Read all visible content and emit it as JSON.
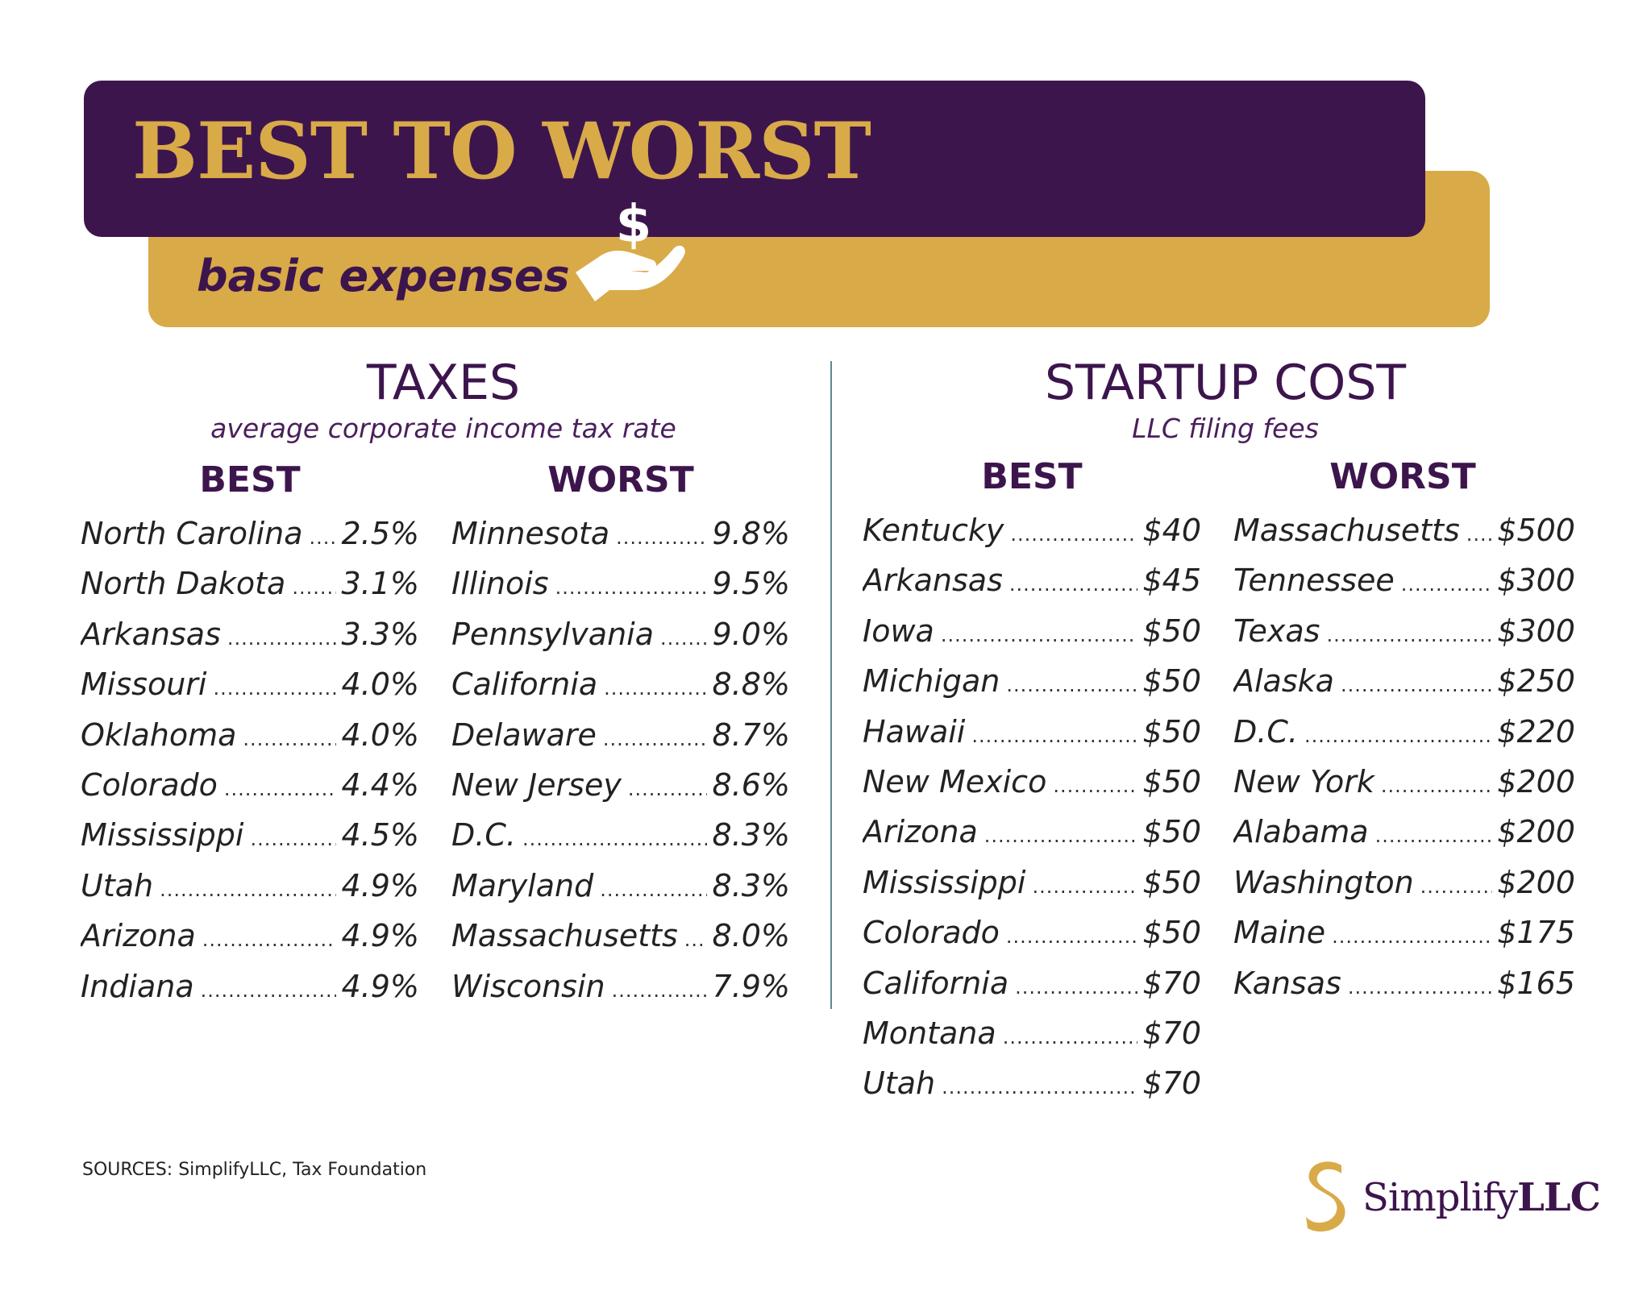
{
  "header": {
    "title": "BEST TO WORST",
    "subtitle": "basic expenses",
    "icon": "money-hand-icon"
  },
  "colors": {
    "purple": "#3d154d",
    "gold": "#d9aa48",
    "divider": "#5d8a94",
    "text": "#222222"
  },
  "taxes": {
    "title": "TAXES",
    "subtitle": "average corporate income tax rate",
    "best_label": "BEST",
    "worst_label": "WORST",
    "best": [
      {
        "name": "North Carolina",
        "value": "2.5%"
      },
      {
        "name": "North Dakota",
        "value": "3.1%"
      },
      {
        "name": "Arkansas",
        "value": "3.3%"
      },
      {
        "name": "Missouri",
        "value": "4.0%"
      },
      {
        "name": "Oklahoma",
        "value": "4.0%"
      },
      {
        "name": "Colorado",
        "value": "4.4%"
      },
      {
        "name": "Mississippi",
        "value": "4.5%"
      },
      {
        "name": "Utah",
        "value": "4.9%"
      },
      {
        "name": "Arizona",
        "value": "4.9%"
      },
      {
        "name": "Indiana",
        "value": "4.9%"
      }
    ],
    "worst": [
      {
        "name": "Minnesota",
        "value": "9.8%"
      },
      {
        "name": "Illinois",
        "value": "9.5%"
      },
      {
        "name": "Pennsylvania",
        "value": "9.0%"
      },
      {
        "name": "California",
        "value": "8.8%"
      },
      {
        "name": "Delaware",
        "value": "8.7%"
      },
      {
        "name": "New Jersey",
        "value": "8.6%"
      },
      {
        "name": "D.C.",
        "value": "8.3%"
      },
      {
        "name": "Maryland",
        "value": "8.3%"
      },
      {
        "name": "Massachusetts",
        "value": "8.0%"
      },
      {
        "name": "Wisconsin",
        "value": "7.9%"
      }
    ]
  },
  "startup": {
    "title": "STARTUP COST",
    "subtitle": "LLC filing fees",
    "best_label": "BEST",
    "worst_label": "WORST",
    "best": [
      {
        "name": "Kentucky",
        "value": "$40"
      },
      {
        "name": "Arkansas",
        "value": "$45"
      },
      {
        "name": "Iowa",
        "value": "$50"
      },
      {
        "name": "Michigan",
        "value": "$50"
      },
      {
        "name": "Hawaii",
        "value": "$50"
      },
      {
        "name": "New Mexico",
        "value": "$50"
      },
      {
        "name": "Arizona",
        "value": "$50"
      },
      {
        "name": "Mississippi",
        "value": "$50"
      },
      {
        "name": "Colorado",
        "value": "$50"
      },
      {
        "name": "California",
        "value": "$70"
      },
      {
        "name": "Montana",
        "value": "$70"
      },
      {
        "name": "Utah",
        "value": "$70"
      }
    ],
    "worst": [
      {
        "name": "Massachusetts",
        "value": "$500"
      },
      {
        "name": "Tennessee",
        "value": "$300"
      },
      {
        "name": "Texas",
        "value": "$300"
      },
      {
        "name": "Alaska",
        "value": "$250"
      },
      {
        "name": "D.C.",
        "value": "$220"
      },
      {
        "name": "New York",
        "value": "$200"
      },
      {
        "name": "Alabama",
        "value": "$200"
      },
      {
        "name": "Washington",
        "value": "$200"
      },
      {
        "name": "Maine",
        "value": "$175"
      },
      {
        "name": "Kansas",
        "value": "$165"
      }
    ]
  },
  "footer": {
    "sources": "SOURCES: SimplifyLLC, Tax Foundation",
    "logo_regular": "Simplify",
    "logo_bold": "LLC",
    "logo_icon": "simplify-s-logo-icon"
  }
}
